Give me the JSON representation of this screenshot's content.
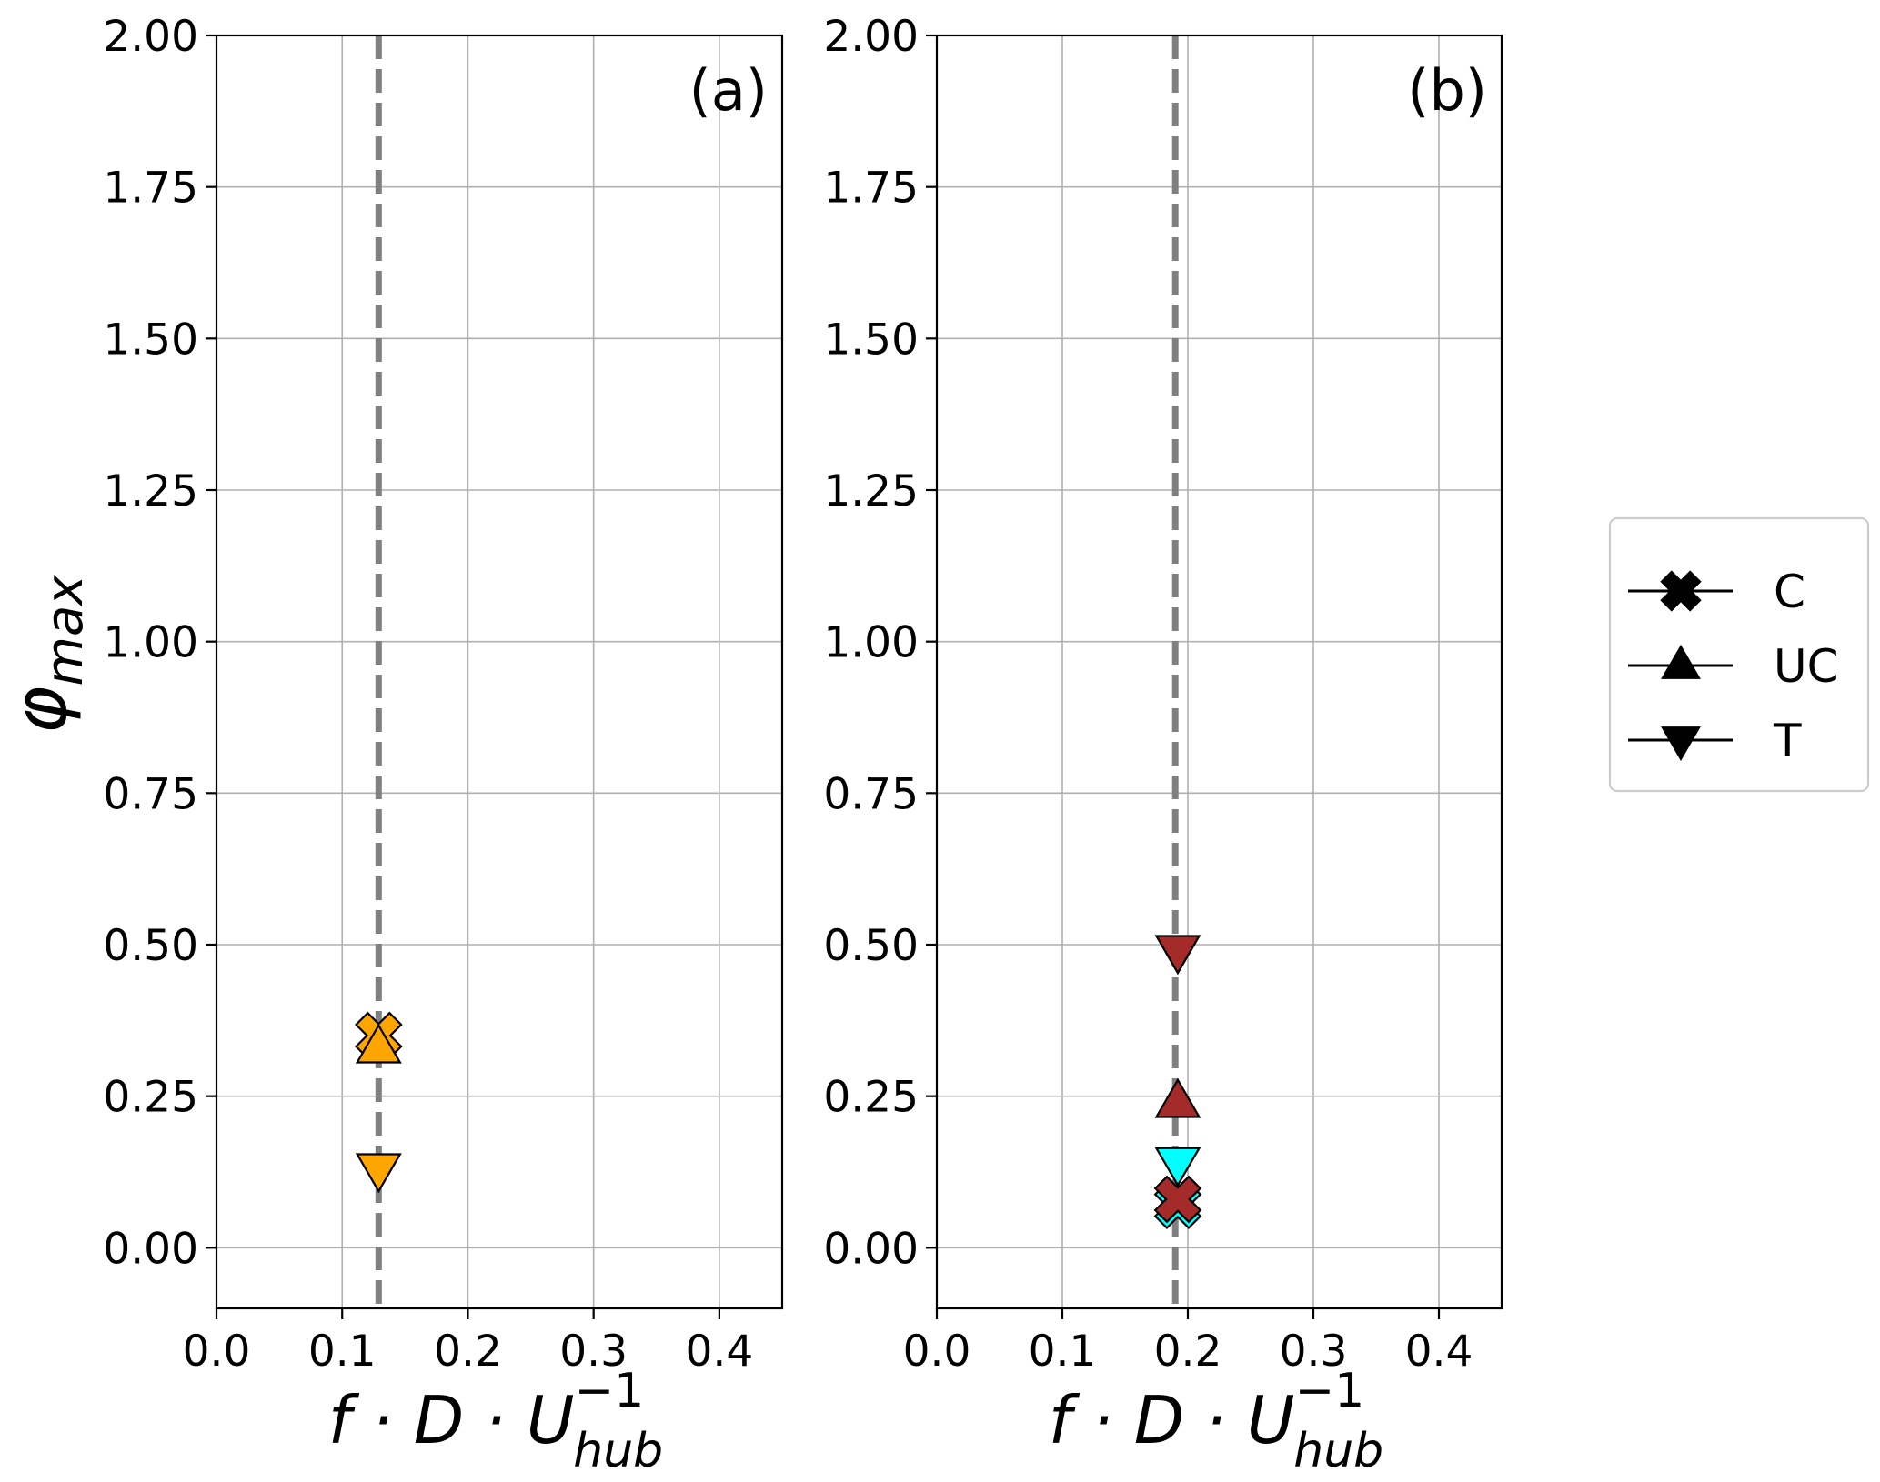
{
  "chart_data": [
    {
      "type": "scatter",
      "panel_label": "(a)",
      "xlabel": "f · D · U",
      "xlabel_sup": "−1",
      "xlabel_sub": "hub",
      "ylabel": "φ",
      "ylabel_sub": "max",
      "xlim": [
        0.0,
        0.45
      ],
      "ylim": [
        -0.1,
        2.0
      ],
      "xticks": [
        "0.0",
        "0.1",
        "0.2",
        "0.3",
        "0.4"
      ],
      "yticks": [
        "0.00",
        "0.25",
        "0.50",
        "0.75",
        "1.00",
        "1.25",
        "1.50",
        "1.75",
        "2.00"
      ],
      "grid": true,
      "reference_line_x": 0.129,
      "points": [
        {
          "series": "C",
          "marker": "x",
          "x": 0.129,
          "y": 0.35,
          "color": "#FFA500"
        },
        {
          "series": "UC",
          "marker": "triangle-up",
          "x": 0.129,
          "y": 0.33,
          "color": "#FFA500"
        },
        {
          "series": "T",
          "marker": "triangle-down",
          "x": 0.129,
          "y": 0.13,
          "color": "#FFA500"
        }
      ]
    },
    {
      "type": "scatter",
      "panel_label": "(b)",
      "xlabel": "f · D · U",
      "xlabel_sup": "−1",
      "xlabel_sub": "hub",
      "ylabel": "",
      "xlim": [
        0.0,
        0.45
      ],
      "ylim": [
        -0.1,
        2.0
      ],
      "xticks": [
        "0.0",
        "0.1",
        "0.2",
        "0.3",
        "0.4"
      ],
      "yticks": [
        "0.00",
        "0.25",
        "0.50",
        "0.75",
        "1.00",
        "1.25",
        "1.50",
        "1.75",
        "2.00"
      ],
      "grid": true,
      "reference_line_x": 0.19,
      "points": [
        {
          "series": "T",
          "marker": "triangle-down",
          "x": 0.192,
          "y": 0.49,
          "color": "#A52A2A"
        },
        {
          "series": "UC",
          "marker": "triangle-up",
          "x": 0.192,
          "y": 0.24,
          "color": "#A52A2A"
        },
        {
          "series": "T",
          "marker": "triangle-down",
          "x": 0.192,
          "y": 0.14,
          "color": "#00FFFF"
        },
        {
          "series": "C",
          "marker": "x",
          "x": 0.192,
          "y": 0.07,
          "color": "#00FFFF"
        },
        {
          "series": "C",
          "marker": "x",
          "x": 0.192,
          "y": 0.08,
          "color": "#A52A2A"
        }
      ]
    }
  ],
  "legend": {
    "placement": "right",
    "entries": [
      {
        "label": "C",
        "marker": "x"
      },
      {
        "label": "UC",
        "marker": "triangle-up"
      },
      {
        "label": "T",
        "marker": "triangle-down"
      }
    ]
  }
}
